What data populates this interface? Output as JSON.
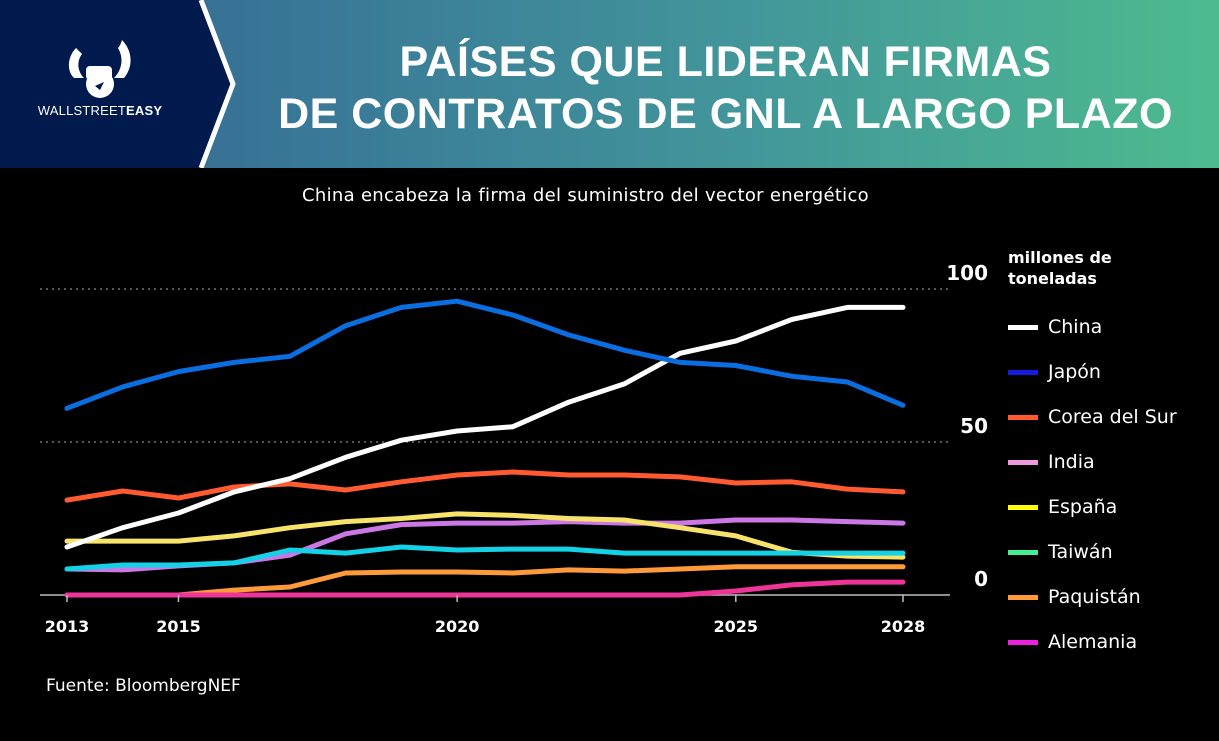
{
  "header": {
    "brand_prefix": "WALLSTREET",
    "brand_suffix": "EASY",
    "title_line1": "PAÍSES QUE LIDERAN FIRMAS",
    "title_line2": "DE CONTRATOS DE GNL A LARGO PLAZO",
    "logo_icon": "bull-horns-fist-icon",
    "colors": {
      "panel": "#001a4d",
      "gradient_start": "#34628f",
      "gradient_end": "#4dbb8f"
    }
  },
  "source": "Fuente: BloombergNEF",
  "chart_data": {
    "type": "line",
    "title": "China encabeza la firma del suministro del vector energético",
    "unit_label_line1": "millones de",
    "unit_label_line2": "toneladas",
    "xlabel": "",
    "ylabel": "millones de toneladas",
    "x": [
      2013,
      2014,
      2015,
      2016,
      2017,
      2018,
      2019,
      2020,
      2021,
      2022,
      2023,
      2024,
      2025,
      2026,
      2027,
      2028
    ],
    "xticks": [
      2013,
      2015,
      2020,
      2025,
      2028
    ],
    "yticks": [
      0,
      50,
      100
    ],
    "ylim": [
      0,
      100
    ],
    "xlim": [
      2013,
      2028
    ],
    "grid": "horizontal dotted at 50 and 100",
    "legend_position": "right",
    "series": [
      {
        "name": "China",
        "color": "#ffffff",
        "legend_color": "#ffffff",
        "values": [
          15.7,
          22,
          26.8,
          33.7,
          38,
          45,
          50.6,
          53.6,
          55,
          63,
          69,
          79,
          83,
          90,
          94,
          94
        ]
      },
      {
        "name": "Japón",
        "color": "#0a6ee0",
        "legend_color": "#1a1adc",
        "values": [
          61,
          68,
          73,
          76,
          78,
          88,
          94,
          96,
          91.5,
          85,
          80,
          76,
          75,
          71.5,
          69.6,
          62
        ]
      },
      {
        "name": "Corea del Sur",
        "color": "#ff5a30",
        "legend_color": "#ff5a30",
        "values": [
          31,
          34,
          31.7,
          35.3,
          36.3,
          34.3,
          37,
          39.2,
          40.2,
          39.2,
          39.2,
          38.6,
          36.6,
          37,
          34.6,
          33.7
        ]
      },
      {
        "name": "India",
        "color": "#cc77e6",
        "legend_color": "#ee99dd",
        "values": [
          8.5,
          8.2,
          9.5,
          10.5,
          13,
          20,
          23,
          23.5,
          23.5,
          24,
          23.5,
          23.5,
          24.5,
          24.5,
          24,
          23.5
        ]
      },
      {
        "name": "España",
        "color": "#f7e26a",
        "legend_color": "#ffff00",
        "values": [
          17.6,
          17.6,
          17.6,
          19.3,
          22,
          24,
          25,
          26.5,
          26,
          25,
          24.5,
          22,
          19.3,
          14,
          12.7,
          12.4
        ]
      },
      {
        "name": "Taiwán",
        "color": "#14d2e6",
        "legend_color": "#44ee99",
        "values": [
          8.5,
          9.8,
          9.8,
          10.5,
          14.7,
          13.7,
          15.7,
          14.7,
          15,
          15,
          13.7,
          13.7,
          13.7,
          13.7,
          13.7,
          13.7
        ]
      },
      {
        "name": "Paquistán",
        "color": "#ff9a3a",
        "legend_color": "#ff9a3a",
        "values": [
          0,
          0,
          0,
          1.6,
          2.6,
          7.2,
          7.5,
          7.5,
          7.2,
          8.2,
          7.8,
          8.5,
          9.2,
          9.2,
          9.2,
          9.2
        ]
      },
      {
        "name": "Alemania",
        "color": "#ee3399",
        "legend_color": "#ee22dd",
        "values": [
          0,
          0,
          0,
          0,
          0,
          0,
          0,
          0,
          0,
          0,
          0,
          0,
          1.3,
          3.3,
          4.2,
          4.2
        ]
      }
    ]
  }
}
